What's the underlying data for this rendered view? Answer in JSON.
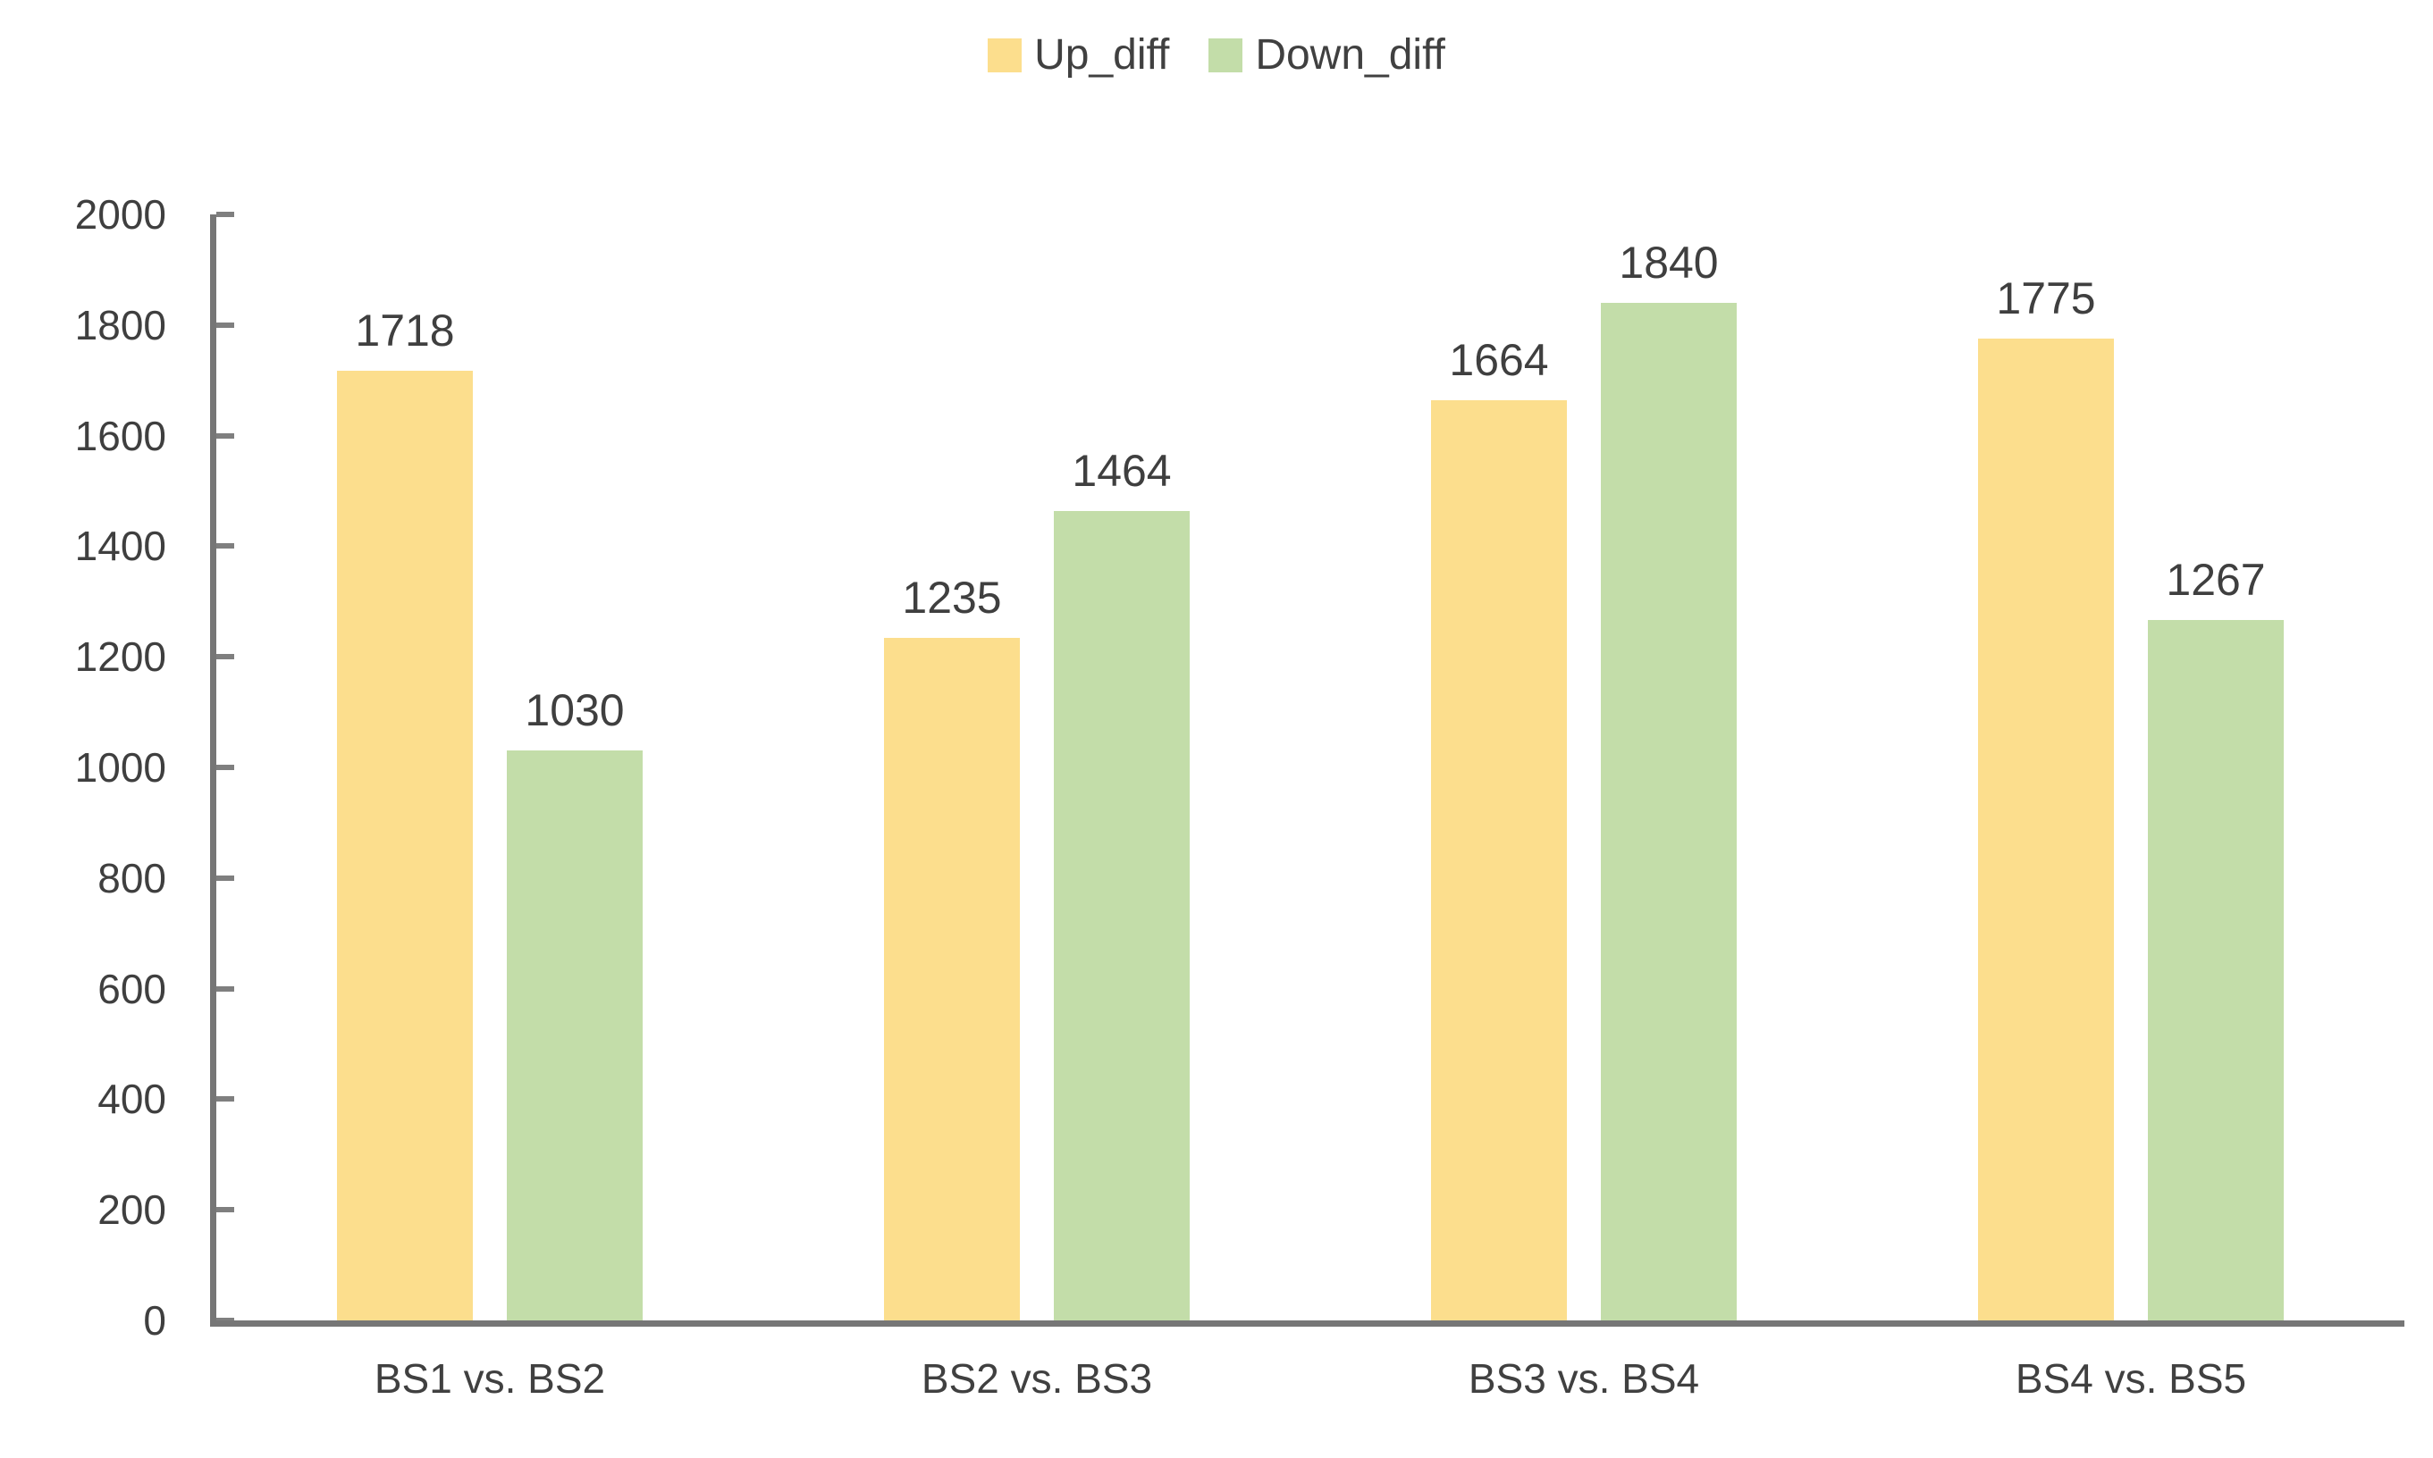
{
  "chart_data": {
    "type": "bar",
    "title": "",
    "xlabel": "",
    "ylabel": "",
    "categories": [
      "BS1 vs. BS2",
      "BS2 vs. BS3",
      "BS3 vs. BS4",
      "BS4 vs. BS5"
    ],
    "series": [
      {
        "name": "Up_diff",
        "color": "#FCDE8D",
        "values": [
          1718,
          1235,
          1664,
          1775
        ]
      },
      {
        "name": "Down_diff",
        "color": "#C3DDA9",
        "values": [
          1030,
          1464,
          1840,
          1267
        ]
      }
    ],
    "ylim": [
      0,
      2000
    ],
    "ytick_step": 200,
    "ytick_labels": [
      "0",
      "200",
      "400",
      "600",
      "800",
      "1000",
      "1200",
      "1400",
      "1600",
      "1800",
      "2000"
    ],
    "grid": false,
    "legend_position": "top-center",
    "data_labels_shown": true,
    "axis_color": "#767676",
    "tick_color": "#7f7f7f",
    "text_color": "#3f3f3f"
  }
}
